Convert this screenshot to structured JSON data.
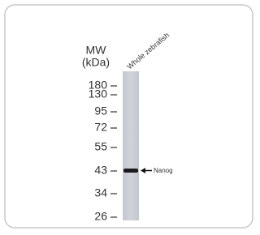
{
  "header": {
    "mw": "MW",
    "unit": "(kDa)"
  },
  "lane_label": "Whole zebrafish",
  "markers": [
    "180",
    "130",
    "95",
    "72",
    "55",
    "43",
    "34",
    "26"
  ],
  "band_label": "Nanog"
}
